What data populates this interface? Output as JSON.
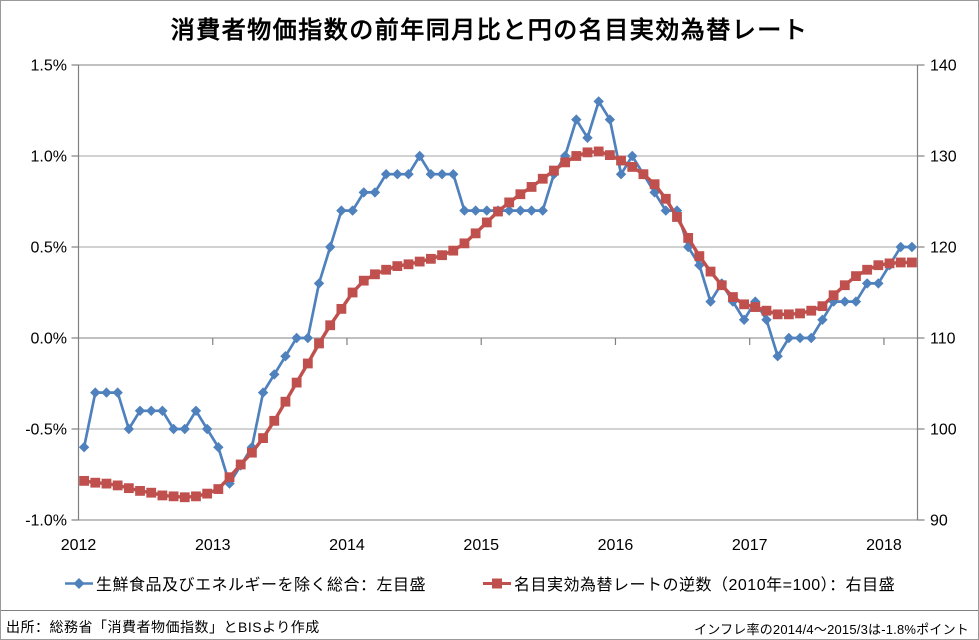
{
  "title": "消費者物価指数の前年同月比と円の名目実効為替レート",
  "footer": {
    "source": "出所：総務省「消費者物価指数」とBISより作成",
    "note": "インフレ率の2014/4～2015/3は-1.8%ポイント"
  },
  "colors": {
    "cpi_series": "#4F81BD",
    "fx_series": "#C0504D",
    "gridline": "#A6A6A6",
    "axis": "#808080"
  },
  "chart_data": {
    "type": "line",
    "title": "消費者物価指数の前年同月比と円の名目実効為替レート",
    "x_axis": {
      "tick_labels": [
        "2012",
        "2013",
        "2014",
        "2015",
        "2016",
        "2017",
        "2018"
      ],
      "months_shown": 75,
      "start_month": "2012-01",
      "end_month": "2018-03"
    },
    "left_axis": {
      "tick_labels": [
        "1.5%",
        "1.0%",
        "0.5%",
        "0.0%",
        "-0.5%",
        "-1.0%"
      ],
      "tick_values": [
        1.5,
        1.0,
        0.5,
        0.0,
        -0.5,
        -1.0
      ],
      "min": -1.0,
      "max": 1.5
    },
    "right_axis": {
      "tick_labels": [
        "140",
        "130",
        "120",
        "110",
        "100",
        "90"
      ],
      "tick_values": [
        140,
        130,
        120,
        110,
        100,
        90
      ],
      "min": 90,
      "max": 140
    },
    "grid": "horizontal-only",
    "legend_position": "bottom",
    "series": [
      {
        "name": "生鮮食品及びエネルギーを除く総合：左目盛",
        "axis": "left",
        "color": "#4F81BD",
        "marker": "diamond",
        "values": [
          -0.6,
          -0.3,
          -0.3,
          -0.3,
          -0.5,
          -0.4,
          -0.4,
          -0.4,
          -0.5,
          -0.5,
          -0.4,
          -0.5,
          -0.6,
          -0.8,
          -0.7,
          -0.6,
          -0.3,
          -0.2,
          -0.1,
          0.0,
          0.0,
          0.3,
          0.5,
          0.7,
          0.7,
          0.8,
          0.8,
          0.9,
          0.9,
          0.9,
          1.0,
          0.9,
          0.9,
          0.9,
          0.7,
          0.7,
          0.7,
          0.7,
          0.7,
          0.7,
          0.7,
          0.7,
          0.9,
          1.0,
          1.2,
          1.1,
          1.3,
          1.2,
          0.9,
          1.0,
          0.9,
          0.8,
          0.7,
          0.7,
          0.5,
          0.4,
          0.2,
          0.3,
          0.2,
          0.1,
          0.2,
          0.1,
          -0.1,
          0.0,
          0.0,
          0.0,
          0.1,
          0.2,
          0.2,
          0.2,
          0.3,
          0.3,
          0.4,
          0.5,
          0.5
        ]
      },
      {
        "name": "名目実効為替レートの逆数（2010年=100）：右目盛",
        "axis": "right",
        "color": "#C0504D",
        "marker": "square",
        "values": [
          94.3,
          94.1,
          94.0,
          93.8,
          93.5,
          93.2,
          93.0,
          92.7,
          92.6,
          92.5,
          92.6,
          92.9,
          93.4,
          94.7,
          96.1,
          97.4,
          99.0,
          100.9,
          103.0,
          105.1,
          107.2,
          109.4,
          111.4,
          113.2,
          115.0,
          116.3,
          117.0,
          117.5,
          117.9,
          118.1,
          118.4,
          118.7,
          119.1,
          119.6,
          120.4,
          121.5,
          122.7,
          123.9,
          124.9,
          125.8,
          126.6,
          127.5,
          128.4,
          129.3,
          130.0,
          130.4,
          130.5,
          130.1,
          129.5,
          128.8,
          128.0,
          126.9,
          125.3,
          123.3,
          121.0,
          119.0,
          117.3,
          115.8,
          114.5,
          113.7,
          113.4,
          113.0,
          112.6,
          112.6,
          112.7,
          113.0,
          113.5,
          114.7,
          115.8,
          116.8,
          117.5,
          118.0,
          118.2,
          118.3,
          118.3
        ]
      }
    ]
  }
}
